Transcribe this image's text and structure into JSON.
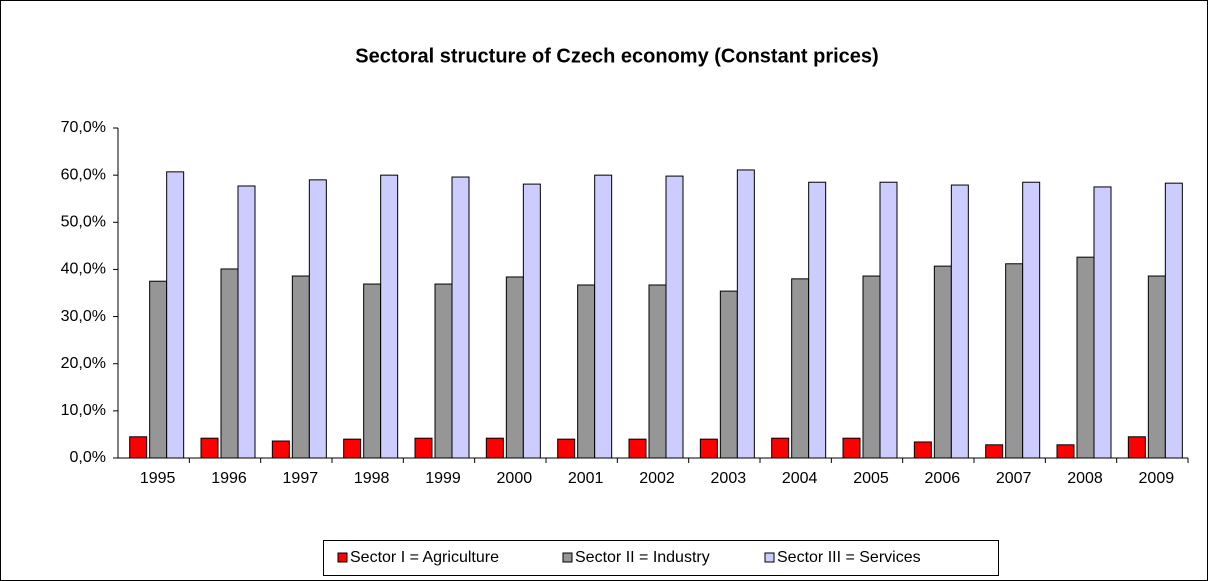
{
  "chart_data": {
    "type": "bar",
    "title": "Sectoral structure of Czech economy (Constant prices)",
    "categories": [
      "1995",
      "1996",
      "1997",
      "1998",
      "1999",
      "2000",
      "2001",
      "2002",
      "2003",
      "2004",
      "2005",
      "2006",
      "2007",
      "2008",
      "2009"
    ],
    "series": [
      {
        "name": "Sector I = Agriculture",
        "color": "#ff0000",
        "values": [
          4.5,
          4.2,
          3.6,
          4.0,
          4.2,
          4.2,
          4.0,
          4.0,
          4.0,
          4.2,
          4.2,
          3.4,
          2.8,
          2.8,
          4.5
        ]
      },
      {
        "name": "Sector II = Industry",
        "color": "#969696",
        "values": [
          37.5,
          40.1,
          38.6,
          36.9,
          36.9,
          38.4,
          36.7,
          36.7,
          35.4,
          38.0,
          38.6,
          40.7,
          41.2,
          42.6,
          38.6
        ]
      },
      {
        "name": "Sector III =  Services",
        "color": "#ccccff",
        "values": [
          60.7,
          57.7,
          59.0,
          60.0,
          59.6,
          58.1,
          60.0,
          59.8,
          61.1,
          58.5,
          58.5,
          57.9,
          58.5,
          57.5,
          58.3
        ]
      }
    ],
    "ylim": [
      0,
      70
    ],
    "yticks": [
      {
        "value": 0,
        "label": "0,0%"
      },
      {
        "value": 10,
        "label": "10,0%"
      },
      {
        "value": 20,
        "label": "20,0%"
      },
      {
        "value": 30,
        "label": "30,0%"
      },
      {
        "value": 40,
        "label": "40,0%"
      },
      {
        "value": 50,
        "label": "50,0%"
      },
      {
        "value": 60,
        "label": "60,0%"
      },
      {
        "value": 70,
        "label": "70,0%"
      }
    ],
    "grid": false,
    "legend": "bottom"
  }
}
